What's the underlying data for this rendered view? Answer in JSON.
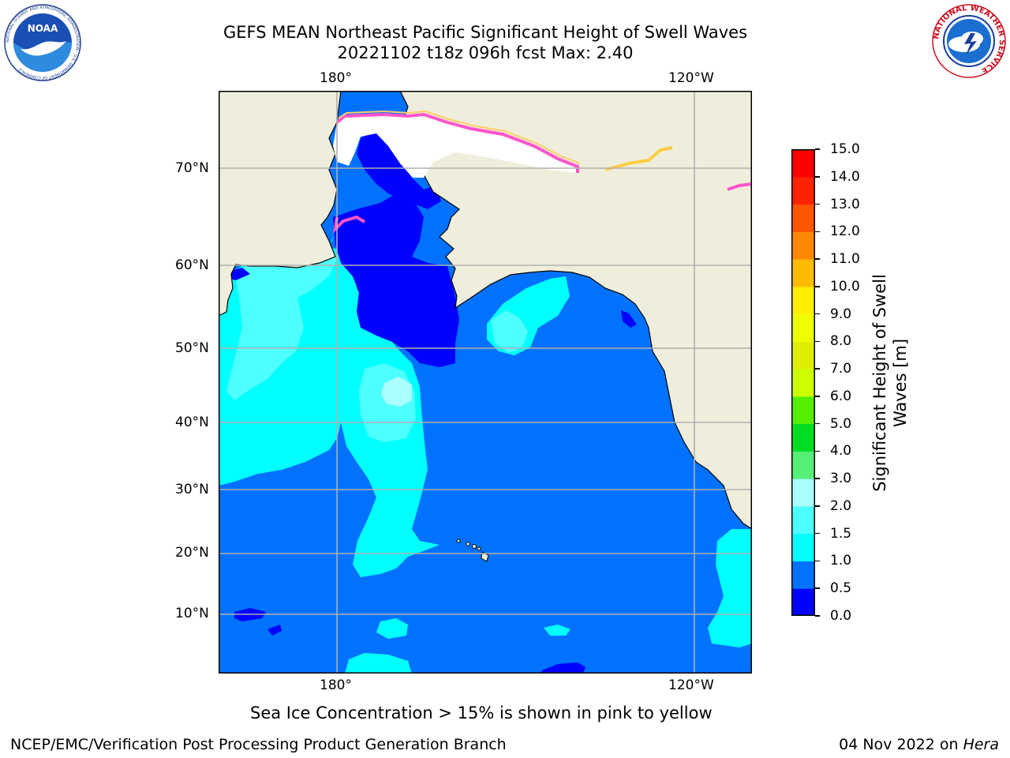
{
  "title": {
    "line1": "GEFS MEAN Northeast Pacific Significant Height of Swell Waves",
    "line2": "20221102 t18z 096h fcst   Max: 2.40"
  },
  "logos": {
    "left": {
      "name": "NOAA",
      "text": "NOAA",
      "ring_text": "NATIONAL OCEANIC AND ATMOSPHERIC ADMINISTRATION · U.S. DEPARTMENT OF COMMERCE"
    },
    "right": {
      "name": "National Weather Service",
      "ring_text": "NATIONAL WEATHER SERVICE"
    }
  },
  "map": {
    "lon_labels_top": [
      "180°",
      "120°W"
    ],
    "lon_labels_bottom": [
      "180°",
      "120°W"
    ],
    "lat_labels": [
      "70°N",
      "60°N",
      "50°N",
      "40°N",
      "30°N",
      "20°N",
      "10°N"
    ],
    "colors": {
      "land": "#efeedc",
      "sea_ice": "#ffffff",
      "grid": "#b0b0b0"
    }
  },
  "colorbar": {
    "label": "Significant Height of Swell Waves [m]",
    "label_line1": "Significant Height of Swell",
    "label_line2": "Waves [m]",
    "ticks": [
      "15.0",
      "14.0",
      "13.0",
      "12.0",
      "11.0",
      "10.0",
      "9.0",
      "8.0",
      "7.0",
      "6.0",
      "5.0",
      "4.0",
      "3.0",
      "2.0",
      "1.5",
      "1.0",
      "0.5",
      "0.0"
    ],
    "bins": [
      {
        "from": 0.0,
        "to": 0.5,
        "color": "#0000ff"
      },
      {
        "from": 0.5,
        "to": 1.0,
        "color": "#0072ff"
      },
      {
        "from": 1.0,
        "to": 1.5,
        "color": "#00ffff"
      },
      {
        "from": 1.5,
        "to": 2.0,
        "color": "#4dffff"
      },
      {
        "from": 2.0,
        "to": 3.0,
        "color": "#aaffff"
      },
      {
        "from": 3.0,
        "to": 4.0,
        "color": "#55ee77"
      },
      {
        "from": 4.0,
        "to": 5.0,
        "color": "#00dd22"
      },
      {
        "from": 5.0,
        "to": 6.0,
        "color": "#55ee00"
      },
      {
        "from": 6.0,
        "to": 7.0,
        "color": "#ccff00"
      },
      {
        "from": 7.0,
        "to": 8.0,
        "color": "#ddee00"
      },
      {
        "from": 8.0,
        "to": 9.0,
        "color": "#eeff00"
      },
      {
        "from": 9.0,
        "to": 10.0,
        "color": "#ffee00"
      },
      {
        "from": 10.0,
        "to": 11.0,
        "color": "#ffbb00"
      },
      {
        "from": 11.0,
        "to": 12.0,
        "color": "#ff8800"
      },
      {
        "from": 12.0,
        "to": 13.0,
        "color": "#ff5500"
      },
      {
        "from": 13.0,
        "to": 14.0,
        "color": "#ff2200"
      },
      {
        "from": 14.0,
        "to": 15.0,
        "color": "#ff0000"
      }
    ]
  },
  "note": "Sea Ice Concentration > 15% is shown in pink to yellow",
  "footer": {
    "left": "NCEP/EMC/Verification Post Processing Product Generation Branch",
    "date": "04 Nov 2022",
    "on": " on ",
    "host": "Hera"
  }
}
